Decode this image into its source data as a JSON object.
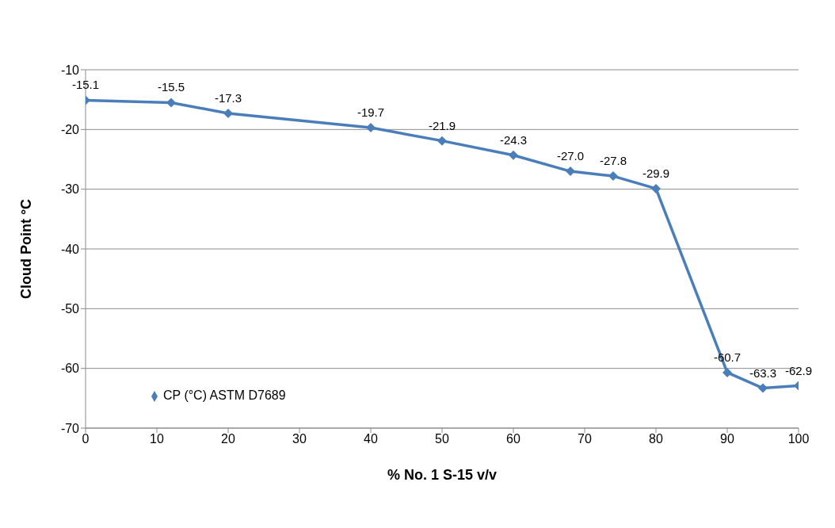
{
  "chart_data": {
    "type": "line",
    "xlabel": "% No. 1 S-15 v/v",
    "ylabel": "Cloud Point °C",
    "x": [
      0,
      12,
      20,
      40,
      50,
      60,
      68,
      74,
      80,
      90,
      95,
      100
    ],
    "series": [
      {
        "name": "CP (°C) ASTM D7689",
        "color": "#4a7ebb",
        "values": [
          -15.1,
          -15.5,
          -17.3,
          -19.7,
          -21.9,
          -24.3,
          -27.0,
          -27.8,
          -29.9,
          -60.7,
          -63.3,
          -62.9
        ],
        "value_labels": [
          "-15.1",
          "-15.5",
          "-17.3",
          "-19.7",
          "-21.9",
          "-24.3",
          "-27.0",
          "-27.8",
          "-29.9",
          "-60.7",
          "-63.3",
          "-62.9"
        ]
      }
    ],
    "xlim": [
      0,
      100
    ],
    "xticks": [
      0,
      10,
      20,
      30,
      40,
      50,
      60,
      70,
      80,
      90,
      100
    ],
    "ylim": [
      -70,
      -10
    ],
    "yticks": [
      -10,
      -20,
      -30,
      -40,
      -50,
      -60,
      -70
    ],
    "grid": "y",
    "legend": "bottom left",
    "marker": "diamond",
    "line_style": "solid"
  }
}
